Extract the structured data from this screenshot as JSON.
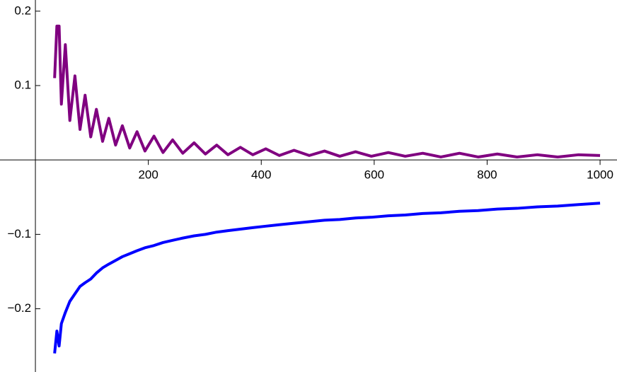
{
  "chart_data": {
    "type": "line",
    "x": [
      34,
      38,
      42,
      46,
      53,
      61,
      70,
      79,
      88,
      98,
      108,
      119,
      130,
      142,
      154,
      167,
      180,
      194,
      210,
      226,
      243,
      261,
      281,
      301,
      321,
      341,
      363,
      385,
      408,
      432,
      458,
      485,
      512,
      539,
      567,
      595,
      625,
      655,
      686,
      718,
      751,
      784,
      818,
      853,
      889,
      925,
      962,
      1000
    ],
    "series": [
      {
        "color": "#800080",
        "values": [
          0.11,
          0.18,
          0.18,
          0.075,
          0.155,
          0.053,
          0.113,
          0.041,
          0.087,
          0.031,
          0.068,
          0.025,
          0.056,
          0.02,
          0.046,
          0.016,
          0.038,
          0.012,
          0.032,
          0.01,
          0.027,
          0.009,
          0.023,
          0.008,
          0.02,
          0.007,
          0.017,
          0.007,
          0.015,
          0.006,
          0.013,
          0.006,
          0.012,
          0.005,
          0.011,
          0.005,
          0.01,
          0.005,
          0.009,
          0.004,
          0.009,
          0.004,
          0.008,
          0.004,
          0.007,
          0.004,
          0.007,
          0.006
        ]
      },
      {
        "color": "#0000ff",
        "values": [
          -0.26,
          -0.23,
          -0.25,
          -0.22,
          -0.205,
          -0.19,
          -0.18,
          -0.17,
          -0.165,
          -0.16,
          -0.152,
          -0.145,
          -0.14,
          -0.135,
          -0.13,
          -0.126,
          -0.122,
          -0.118,
          -0.115,
          -0.111,
          -0.108,
          -0.105,
          -0.102,
          -0.1,
          -0.097,
          -0.095,
          -0.093,
          -0.091,
          -0.089,
          -0.087,
          -0.085,
          -0.083,
          -0.081,
          -0.08,
          -0.078,
          -0.077,
          -0.075,
          -0.074,
          -0.072,
          -0.071,
          -0.069,
          -0.068,
          -0.066,
          -0.065,
          -0.063,
          -0.062,
          -0.06,
          -0.058
        ]
      }
    ],
    "xlim": [
      -62.7,
      1030
    ],
    "ylim": [
      -0.285,
      0.215
    ],
    "xticks": [
      200,
      400,
      600,
      800,
      1000
    ],
    "yticks": [
      {
        "value": -0.2,
        "label": "−0.2"
      },
      {
        "value": -0.1,
        "label": "−0.1"
      },
      0.1,
      0.2
    ]
  }
}
